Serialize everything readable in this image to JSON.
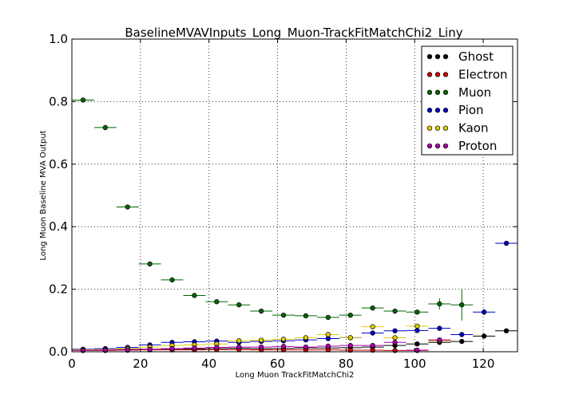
{
  "chart_data": {
    "type": "scatter",
    "title": "BaselineMVAVInputs_Long_Muon-TrackFitMatchChi2_Liny",
    "xlabel": "Long Muon TrackFitMatchChi2",
    "ylabel": "Long Muon Baseline MVA Output",
    "xlim": [
      0,
      130
    ],
    "ylim": [
      0,
      1.0
    ],
    "x_ticks": [
      "0",
      "20",
      "40",
      "60",
      "80",
      "100",
      "120"
    ],
    "y_ticks": [
      "0.0",
      "0.2",
      "0.4",
      "0.6",
      "0.8",
      "1.0"
    ],
    "grid": true,
    "legend_position": "top-right",
    "bin_half_width": 3.25,
    "series": [
      {
        "name": "Ghost",
        "color": "#000000",
        "points": [
          [
            3.25,
            0.005
          ],
          [
            9.75,
            0.006
          ],
          [
            16.25,
            0.008
          ],
          [
            22.75,
            0.008
          ],
          [
            29.25,
            0.009
          ],
          [
            35.75,
            0.009
          ],
          [
            42.25,
            0.01
          ],
          [
            48.75,
            0.011
          ],
          [
            55.25,
            0.01
          ],
          [
            61.75,
            0.011
          ],
          [
            68.25,
            0.012
          ],
          [
            74.75,
            0.012
          ],
          [
            81.25,
            0.013
          ],
          [
            87.75,
            0.015
          ],
          [
            94.25,
            0.02
          ],
          [
            100.75,
            0.025
          ],
          [
            107.25,
            0.03
          ],
          [
            113.75,
            0.033
          ],
          [
            120.25,
            0.05
          ],
          [
            126.75,
            0.067
          ]
        ]
      },
      {
        "name": "Electron",
        "color": "#cc0000",
        "points": [
          [
            3.25,
            0.004
          ],
          [
            9.75,
            0.004
          ],
          [
            16.25,
            0.005
          ],
          [
            22.75,
            0.006
          ],
          [
            29.25,
            0.006
          ],
          [
            35.75,
            0.006
          ],
          [
            42.25,
            0.007
          ],
          [
            48.75,
            0.007
          ],
          [
            55.25,
            0.006
          ],
          [
            61.75,
            0.006
          ],
          [
            68.25,
            0.006
          ],
          [
            74.75,
            0.006
          ],
          [
            81.25,
            0.005
          ],
          [
            87.75,
            0.005
          ],
          [
            94.25,
            0.004
          ],
          [
            100.75,
            0.004
          ],
          [
            107.25,
            0.035
          ]
        ]
      },
      {
        "name": "Muon",
        "color": "#006600",
        "points": [
          [
            3.25,
            0.805
          ],
          [
            9.75,
            0.717
          ],
          [
            16.25,
            0.463
          ],
          [
            22.75,
            0.281
          ],
          [
            29.25,
            0.23
          ],
          [
            35.75,
            0.18
          ],
          [
            42.25,
            0.16
          ],
          [
            48.75,
            0.15
          ],
          [
            55.25,
            0.13
          ],
          [
            61.75,
            0.117
          ],
          [
            68.25,
            0.115
          ],
          [
            74.75,
            0.11
          ],
          [
            81.25,
            0.117
          ],
          [
            87.75,
            0.14
          ],
          [
            94.25,
            0.13
          ],
          [
            100.75,
            0.127
          ],
          [
            107.25,
            0.153
          ],
          [
            113.75,
            0.15
          ]
        ],
        "errors": [
          0.003,
          0.004,
          0.004,
          0.004,
          0.004,
          0.004,
          0.004,
          0.004,
          0.004,
          0.004,
          0.004,
          0.005,
          0.005,
          0.006,
          0.007,
          0.008,
          0.018,
          0.05
        ]
      },
      {
        "name": "Pion",
        "color": "#0000cc",
        "points": [
          [
            3.25,
            0.008
          ],
          [
            9.75,
            0.01
          ],
          [
            16.25,
            0.014
          ],
          [
            22.75,
            0.022
          ],
          [
            29.25,
            0.03
          ],
          [
            35.75,
            0.032
          ],
          [
            42.25,
            0.034
          ],
          [
            48.75,
            0.03
          ],
          [
            55.25,
            0.033
          ],
          [
            61.75,
            0.035
          ],
          [
            68.25,
            0.038
          ],
          [
            74.75,
            0.042
          ],
          [
            81.25,
            0.045
          ],
          [
            87.75,
            0.06
          ],
          [
            94.25,
            0.067
          ],
          [
            100.75,
            0.068
          ],
          [
            107.25,
            0.075
          ],
          [
            113.75,
            0.055
          ],
          [
            120.25,
            0.127
          ],
          [
            126.75,
            0.347
          ]
        ],
        "errors": [
          0.001,
          0.001,
          0.001,
          0.001,
          0.001,
          0.001,
          0.001,
          0.001,
          0.001,
          0.001,
          0.001,
          0.002,
          0.002,
          0.003,
          0.004,
          0.005,
          0.006,
          0.007,
          0.01,
          0.006
        ]
      },
      {
        "name": "Kaon",
        "color": "#ddcc00",
        "points": [
          [
            3.25,
            0.006
          ],
          [
            9.75,
            0.007
          ],
          [
            16.25,
            0.01
          ],
          [
            22.75,
            0.015
          ],
          [
            29.25,
            0.02
          ],
          [
            35.75,
            0.022
          ],
          [
            42.25,
            0.025
          ],
          [
            48.75,
            0.035
          ],
          [
            55.25,
            0.037
          ],
          [
            61.75,
            0.04
          ],
          [
            68.25,
            0.045
          ],
          [
            74.75,
            0.055
          ],
          [
            81.25,
            0.045
          ],
          [
            87.75,
            0.08
          ],
          [
            94.25,
            0.045
          ],
          [
            100.75,
            0.082
          ],
          [
            107.25,
            0.035
          ]
        ]
      },
      {
        "name": "Proton",
        "color": "#aa00aa",
        "points": [
          [
            3.25,
            0.004
          ],
          [
            9.75,
            0.005
          ],
          [
            16.25,
            0.006
          ],
          [
            22.75,
            0.008
          ],
          [
            29.25,
            0.01
          ],
          [
            35.75,
            0.012
          ],
          [
            42.25,
            0.014
          ],
          [
            48.75,
            0.015
          ],
          [
            55.25,
            0.015
          ],
          [
            61.75,
            0.017
          ],
          [
            68.25,
            0.015
          ],
          [
            74.75,
            0.018
          ],
          [
            81.25,
            0.02
          ],
          [
            87.75,
            0.02
          ],
          [
            94.25,
            0.03
          ],
          [
            100.75,
            0.005
          ],
          [
            107.25,
            0.038
          ]
        ]
      }
    ]
  }
}
